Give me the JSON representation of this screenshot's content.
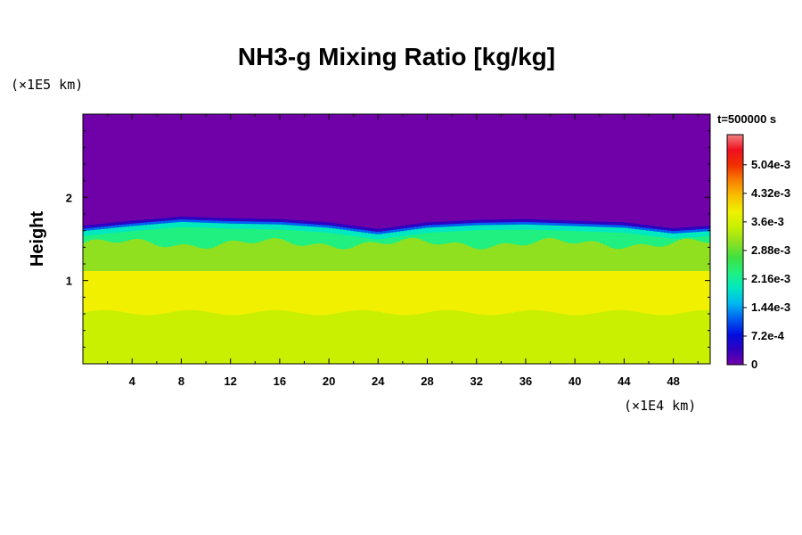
{
  "chart_data": {
    "type": "heatmap",
    "title": "NH3-g Mixing Ratio [kg/kg]",
    "ylabel": "Height",
    "x_unit": "(×1E4 km)",
    "y_unit": "(×1E5 km)",
    "time_label": "t=500000 s",
    "xlim": [
      0,
      51
    ],
    "ylim": [
      0,
      3
    ],
    "x_ticks": [
      "4",
      "8",
      "12",
      "16",
      "20",
      "24",
      "28",
      "32",
      "36",
      "40",
      "44",
      "48"
    ],
    "x_tick_values": [
      4,
      8,
      12,
      16,
      20,
      24,
      28,
      32,
      36,
      40,
      44,
      48
    ],
    "y_ticks": [
      "1",
      "2"
    ],
    "y_tick_values": [
      1,
      2
    ],
    "colorbar": {
      "labels": [
        "0",
        "7.2e-4",
        "1.44e-3",
        "2.16e-3",
        "2.88e-3",
        "3.6e-3",
        "4.32e-3",
        "5.04e-3"
      ],
      "values": [
        0,
        0.00072,
        0.00144,
        0.00216,
        0.00288,
        0.0036,
        0.00432,
        0.00504
      ],
      "max": 0.0058,
      "colors": [
        "#7000a8",
        "#3000c0",
        "#0010e0",
        "#0060f0",
        "#00b8f0",
        "#00e8c0",
        "#20f080",
        "#40e040",
        "#90e020",
        "#c8f000",
        "#f0f000",
        "#f8c000",
        "#f88000",
        "#f03000",
        "#f01020",
        "#f08080"
      ]
    },
    "profile": {
      "description_levels_height": [
        0,
        0.65,
        1.1,
        1.4,
        1.65,
        1.72,
        3.0
      ],
      "mixing_ratio": [
        0.0034,
        0.0034,
        0.0037,
        0.003,
        0.0022,
        0.0,
        0.0
      ]
    },
    "top_interface_height": [
      [
        0,
        1.66
      ],
      [
        4,
        1.72
      ],
      [
        8,
        1.77
      ],
      [
        12,
        1.75
      ],
      [
        16,
        1.74
      ],
      [
        20,
        1.7
      ],
      [
        24,
        1.62
      ],
      [
        28,
        1.7
      ],
      [
        32,
        1.73
      ],
      [
        36,
        1.74
      ],
      [
        40,
        1.72
      ],
      [
        44,
        1.7
      ],
      [
        48,
        1.63
      ],
      [
        51,
        1.66
      ]
    ]
  }
}
